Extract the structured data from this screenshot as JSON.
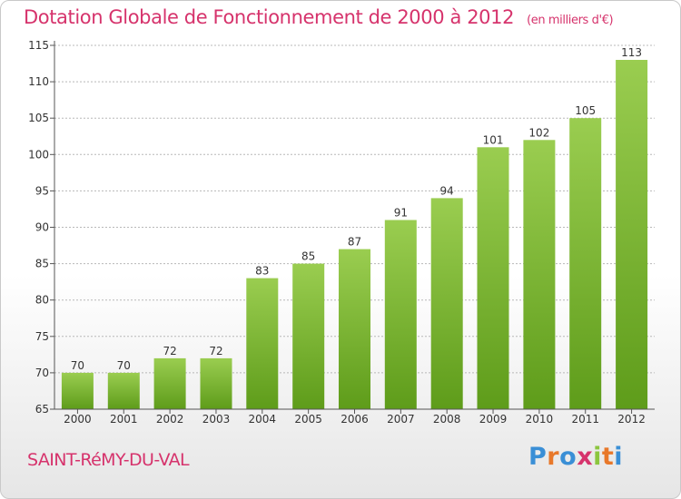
{
  "header": {
    "title": "Dotation Globale de Fonctionnement de 2000 à 2012",
    "unit": "(en milliers d'€)"
  },
  "footer": {
    "commune": "SAINT-RéMY-DU-VAL",
    "brand": "Proxiti"
  },
  "colors": {
    "title": "#d6336c",
    "bar_top": "#9acd50",
    "bar_bottom": "#5e9c1a",
    "grid": "#b8b8b8",
    "brand_letters": [
      "#3a8fd6",
      "#e8782a",
      "#3a8fd6",
      "#d6336c",
      "#8cc63f",
      "#e8782a",
      "#3a8fd6"
    ]
  },
  "chart_data": {
    "type": "bar",
    "title": "Dotation Globale de Fonctionnement de 2000 à 2012",
    "subtitle": "(en milliers d'€)",
    "xlabel": "",
    "ylabel": "",
    "categories": [
      "2000",
      "2001",
      "2002",
      "2003",
      "2004",
      "2005",
      "2006",
      "2007",
      "2008",
      "2009",
      "2010",
      "2011",
      "2012"
    ],
    "values": [
      70,
      70,
      72,
      72,
      83,
      85,
      87,
      91,
      94,
      101,
      102,
      105,
      113
    ],
    "data_labels": [
      "70",
      "70",
      "72",
      "72",
      "83",
      "85",
      "87",
      "91",
      "94",
      "101",
      "102",
      "105",
      "113"
    ],
    "ylim": [
      65,
      115
    ],
    "yticks": [
      65,
      70,
      75,
      80,
      85,
      90,
      95,
      100,
      105,
      110,
      115
    ],
    "grid": true,
    "legend": "none"
  }
}
